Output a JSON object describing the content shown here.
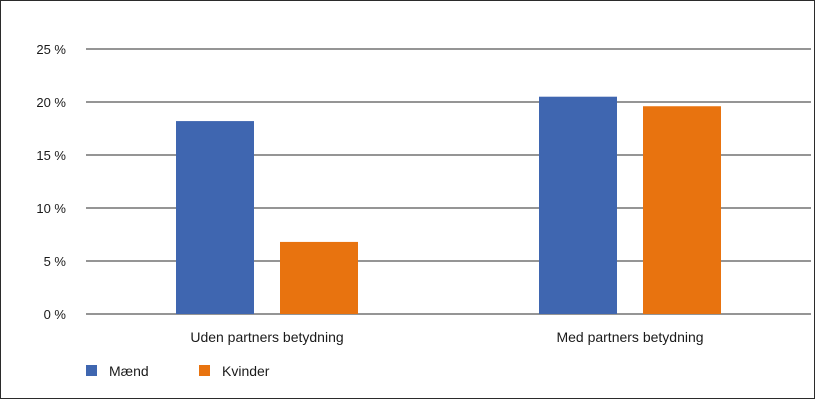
{
  "chart_data": {
    "type": "bar",
    "categories": [
      "Uden partners betydning",
      "Med partners betydning"
    ],
    "series": [
      {
        "name": "Mænd",
        "values": [
          18.2,
          20.5
        ],
        "color": "#3f66b0"
      },
      {
        "name": "Kvinder",
        "values": [
          6.8,
          19.6
        ],
        "color": "#e8730f"
      }
    ],
    "y_ticks": [
      "0 %",
      "5 %",
      "10 %",
      "15 %",
      "20 %",
      "25 %"
    ],
    "ylim": [
      0,
      25
    ],
    "grid": true,
    "legend_position": "bottom-left",
    "title": "",
    "xlabel": "",
    "ylabel": ""
  }
}
